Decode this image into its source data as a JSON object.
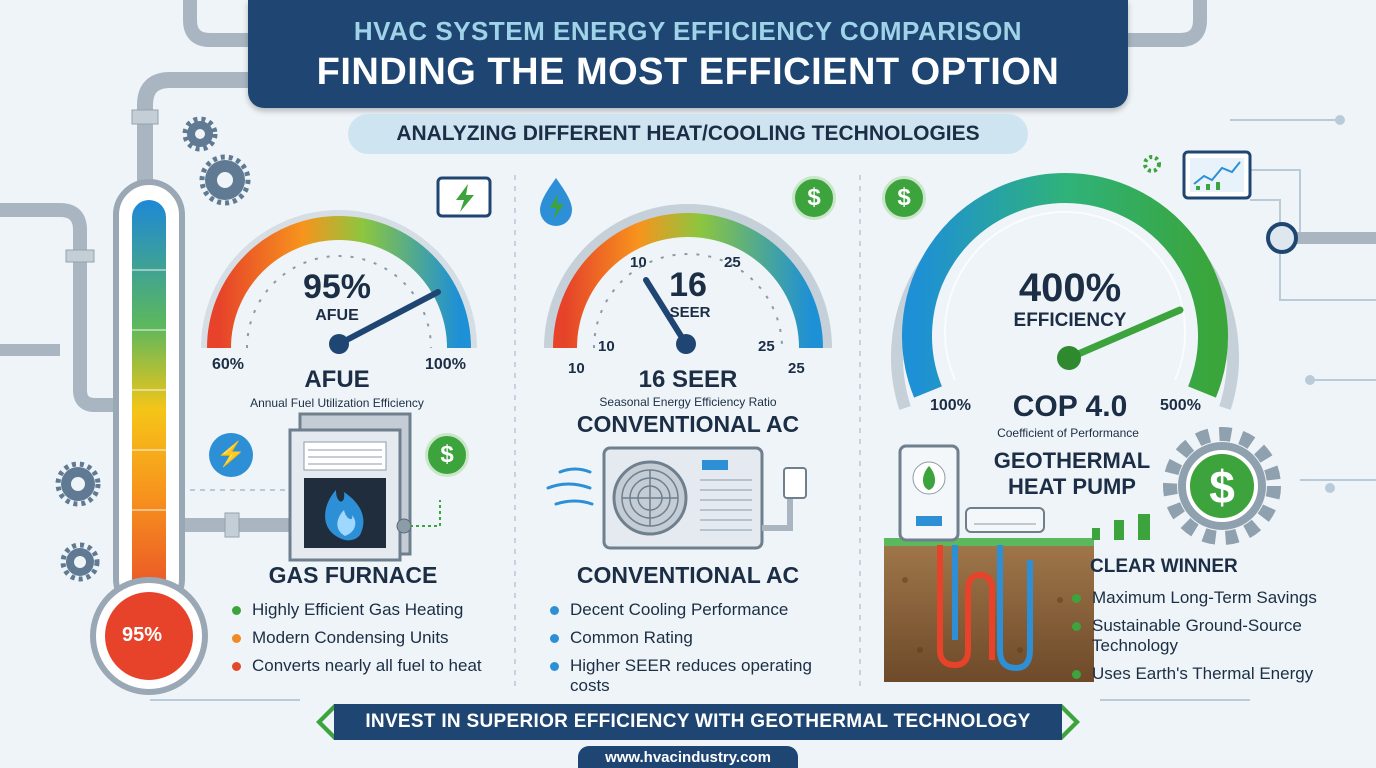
{
  "header": {
    "title_top": "HVAC SYSTEM ENERGY EFFICIENCY COMPARISON",
    "title_main": "FINDING THE MOST EFFICIENT OPTION",
    "subtitle": "ANALYZING DIFFERENT HEAT/COOLING TECHNOLOGIES"
  },
  "thermometer": {
    "label": "95%",
    "level": 0.95
  },
  "furnace": {
    "gauge_value": "95%",
    "gauge_unit": "AFUE",
    "gauge_min": "60%",
    "gauge_max": "100%",
    "metric": "AFUE",
    "metric_desc": "Annual Fuel Utilization Efficiency",
    "name": "GAS FURNACE",
    "bullets": [
      {
        "text": "Highly Efficient Gas Heating",
        "color": "#3da33d"
      },
      {
        "text": "Modern Condensing Units",
        "color": "#f08a24"
      },
      {
        "text": "Converts nearly all fuel to heat",
        "color": "#e04a2a"
      }
    ]
  },
  "ac": {
    "gauge_value": "16",
    "gauge_unit": "SEER",
    "inner_min": "10",
    "inner_max": "25",
    "inner_min_low": "10",
    "inner_max_low": "25",
    "gauge_min": "10",
    "gauge_max": "25",
    "metric": "16 SEER",
    "metric_desc": "Seasonal Energy Efficiency Ratio",
    "title_mid": "CONVENTIONAL AC",
    "name": "CONVENTIONAL AC",
    "bullets": [
      {
        "text": "Decent Cooling Performance",
        "color": "#2d8fd6"
      },
      {
        "text": "Common Rating",
        "color": "#2d8fd6"
      },
      {
        "text": "Higher SEER reduces operating costs",
        "color": "#2d8fd6"
      }
    ]
  },
  "geo": {
    "gauge_value": "400%",
    "gauge_unit": "EFFICIENCY",
    "gauge_min": "100%",
    "gauge_max": "500%",
    "metric": "COP 4.0",
    "metric_desc": "Coefficient of Performance",
    "name_line1": "GEOTHERMAL",
    "name_line2": "HEAT PUMP",
    "winner": "CLEAR WINNER",
    "bullets": [
      {
        "text": "Maximum Long-Term Savings",
        "color": "#3da33d"
      },
      {
        "text": "Sustainable Ground-Source Technology",
        "color": "#3da33d"
      },
      {
        "text": "Uses Earth's Thermal Energy",
        "color": "#3da33d"
      }
    ]
  },
  "icons": {
    "dollar": "$",
    "lightning": "⚡"
  },
  "footer": {
    "banner": "INVEST IN SUPERIOR EFFICIENCY WITH GEOTHERMAL TECHNOLOGY",
    "url": "www.hvacindustry.com"
  },
  "colors": {
    "navy": "#1f4672",
    "green": "#3da33d",
    "blue": "#2d8fd6",
    "orange": "#f08a24",
    "red": "#e04a2a"
  }
}
